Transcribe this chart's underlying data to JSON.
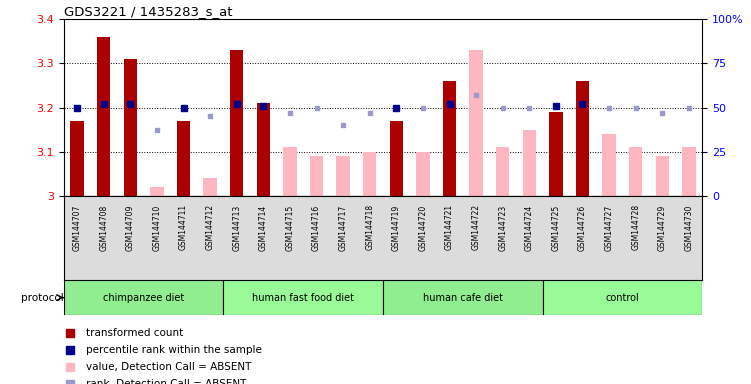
{
  "title": "GDS3221 / 1435283_s_at",
  "samples": [
    "GSM144707",
    "GSM144708",
    "GSM144709",
    "GSM144710",
    "GSM144711",
    "GSM144712",
    "GSM144713",
    "GSM144714",
    "GSM144715",
    "GSM144716",
    "GSM144717",
    "GSM144718",
    "GSM144719",
    "GSM144720",
    "GSM144721",
    "GSM144722",
    "GSM144723",
    "GSM144724",
    "GSM144725",
    "GSM144726",
    "GSM144727",
    "GSM144728",
    "GSM144729",
    "GSM144730"
  ],
  "transformed_count": [
    3.17,
    3.36,
    3.31,
    null,
    3.17,
    null,
    3.33,
    3.21,
    null,
    null,
    null,
    null,
    3.17,
    null,
    3.26,
    null,
    null,
    null,
    3.19,
    3.26,
    null,
    null,
    null,
    null
  ],
  "absent_value": [
    null,
    null,
    null,
    3.02,
    null,
    3.04,
    null,
    null,
    3.11,
    3.09,
    3.09,
    3.1,
    null,
    3.1,
    null,
    3.33,
    3.11,
    3.15,
    null,
    null,
    3.14,
    3.11,
    3.09,
    3.11
  ],
  "percentile_rank": [
    50,
    52,
    52,
    null,
    50,
    null,
    52,
    51,
    null,
    null,
    null,
    null,
    50,
    null,
    52,
    null,
    null,
    null,
    51,
    52,
    null,
    null,
    null,
    null
  ],
  "absent_rank_pct": [
    null,
    null,
    null,
    37,
    null,
    45,
    null,
    null,
    47,
    50,
    40,
    47,
    null,
    50,
    null,
    57,
    50,
    50,
    null,
    null,
    50,
    50,
    47,
    50
  ],
  "protocols": [
    {
      "label": "chimpanzee diet",
      "start": 0,
      "end": 6,
      "color": "#90EE90"
    },
    {
      "label": "human fast food diet",
      "start": 6,
      "end": 12,
      "color": "#98FB98"
    },
    {
      "label": "human cafe diet",
      "start": 12,
      "end": 18,
      "color": "#90EE90"
    },
    {
      "label": "control",
      "start": 18,
      "end": 24,
      "color": "#98FB98"
    }
  ],
  "ylim": [
    3.0,
    3.4
  ],
  "y2lim": [
    0,
    100
  ],
  "yticks": [
    3.0,
    3.1,
    3.2,
    3.3,
    3.4
  ],
  "y2ticks": [
    0,
    25,
    50,
    75,
    100
  ],
  "bar_color_present": "#AA0000",
  "bar_color_absent": "#FFB6C1",
  "dot_color_present": "#00008B",
  "dot_color_absent": "#9999CC",
  "bg_color": "#DCDCDC",
  "plot_bg": "white"
}
